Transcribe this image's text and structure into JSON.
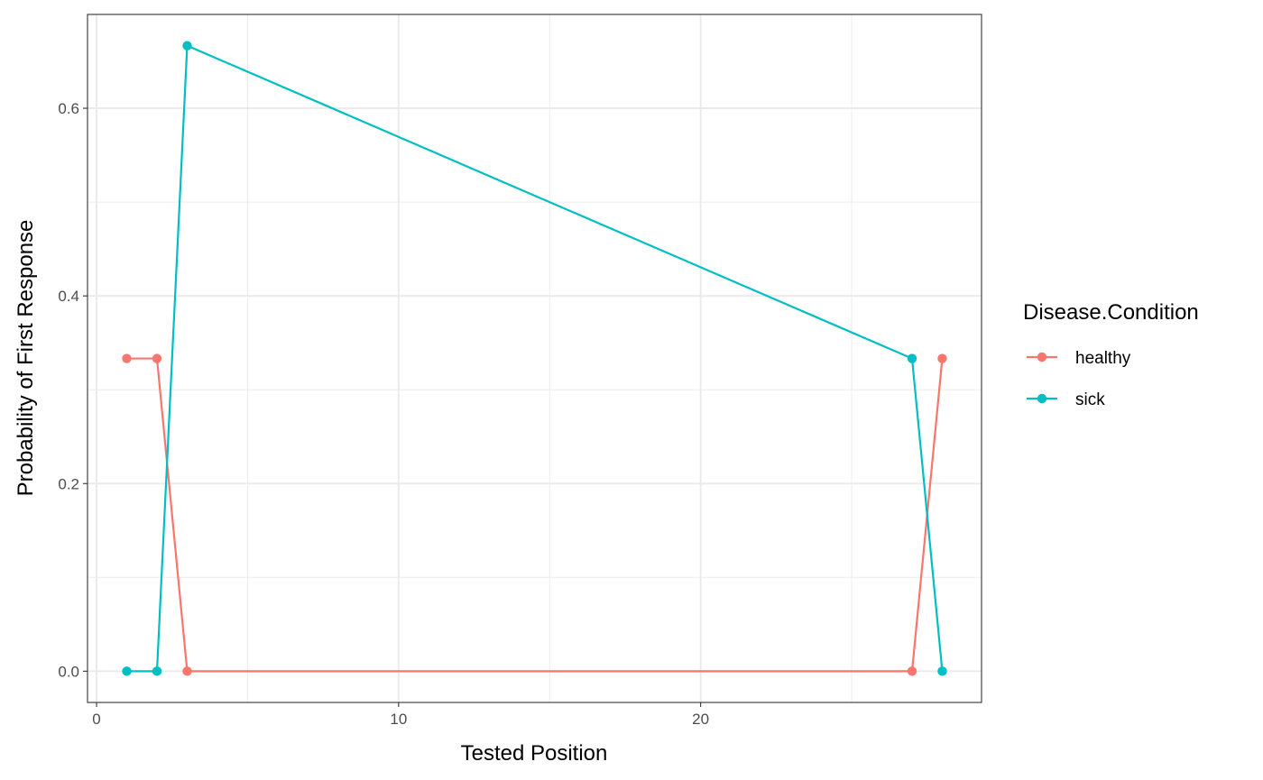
{
  "chart_data": {
    "type": "line",
    "title": "",
    "xlabel": "Tested Position",
    "ylabel": "Probability of First Response",
    "xlim": [
      -0.3,
      29.3
    ],
    "ylim": [
      -0.0333,
      0.7
    ],
    "x_ticks": [
      {
        "value": 0,
        "label": "0"
      },
      {
        "value": 10,
        "label": "10"
      },
      {
        "value": 20,
        "label": "20"
      }
    ],
    "x_minor_ticks": [
      5,
      15,
      25
    ],
    "y_ticks": [
      {
        "value": 0.0,
        "label": "0.0"
      },
      {
        "value": 0.2,
        "label": "0.2"
      },
      {
        "value": 0.4,
        "label": "0.4"
      },
      {
        "value": 0.6,
        "label": "0.6"
      }
    ],
    "y_minor_ticks": [
      0.1,
      0.3,
      0.5
    ],
    "grid": true,
    "legend": {
      "title": "Disease.Condition",
      "placement": "right"
    },
    "series": [
      {
        "name": "healthy",
        "color": "#F8766D",
        "x": [
          1,
          2,
          3,
          27,
          28
        ],
        "y": [
          0.3333,
          0.3333,
          0.0,
          0.0,
          0.3333
        ]
      },
      {
        "name": "sick",
        "color": "#00BFC4",
        "x": [
          1,
          2,
          3,
          27,
          28
        ],
        "y": [
          0.0,
          0.0,
          0.6667,
          0.3333,
          0.0
        ]
      }
    ]
  }
}
